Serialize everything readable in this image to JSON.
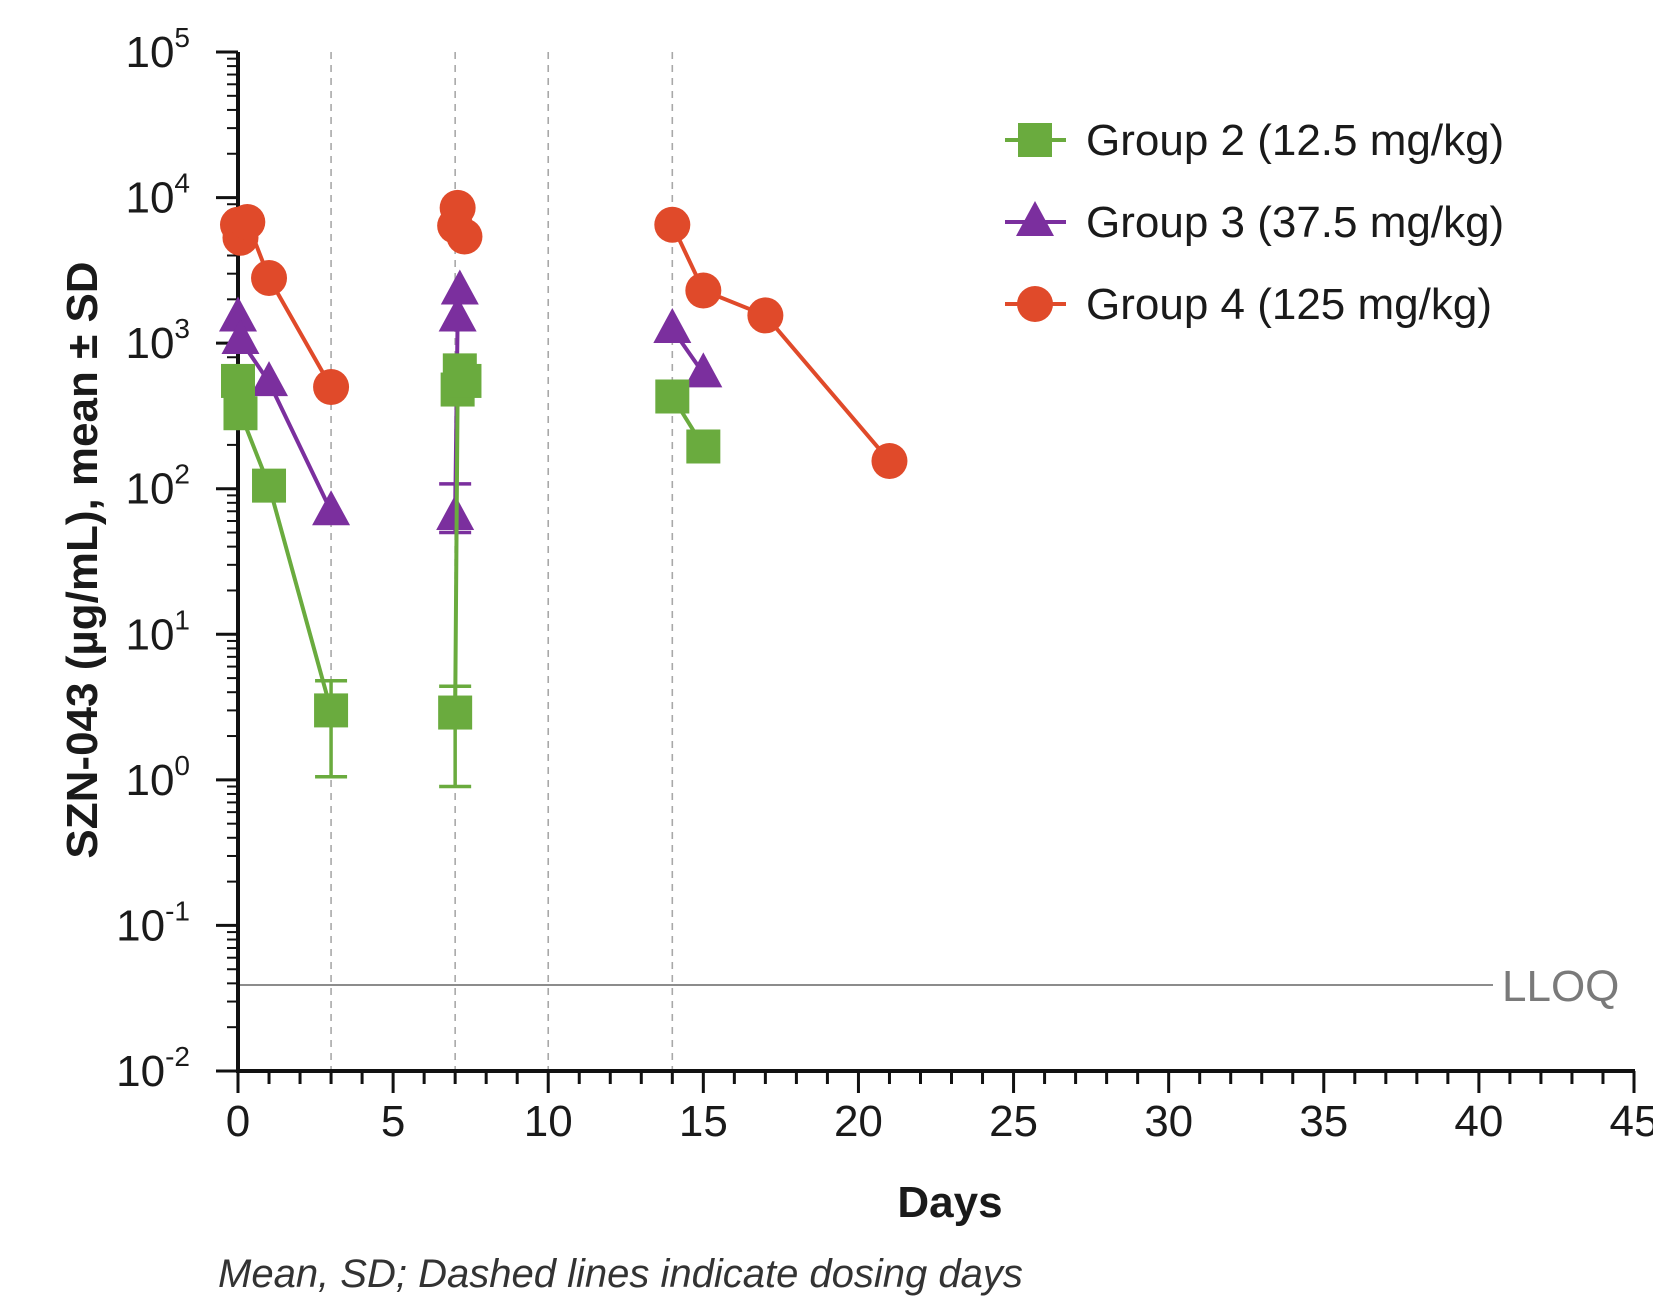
{
  "chart_data": {
    "type": "line",
    "title": "",
    "xlabel": "Days",
    "ylabel": "SZN-043 (µg/mL), mean ± SD",
    "y_scale": "log",
    "xlim": [
      0,
      45
    ],
    "ylim": [
      0.01,
      100000
    ],
    "x_ticks": [
      "0",
      "5",
      "10",
      "15",
      "20",
      "25",
      "30",
      "35",
      "40",
      "45"
    ],
    "y_ticks": [
      {
        "base": "10",
        "exp": "5",
        "value": 100000
      },
      {
        "base": "10",
        "exp": "4",
        "value": 10000
      },
      {
        "base": "10",
        "exp": "3",
        "value": 1000
      },
      {
        "base": "10",
        "exp": "2",
        "value": 100
      },
      {
        "base": "10",
        "exp": "1",
        "value": 10
      },
      {
        "base": "10",
        "exp": "0",
        "value": 1
      },
      {
        "base": "10",
        "exp": "-1",
        "value": 0.1
      },
      {
        "base": "10",
        "exp": "-2",
        "value": 0.01
      }
    ],
    "dosing_days": [
      3,
      7,
      10,
      14
    ],
    "lloq": {
      "label": "LLOQ",
      "value": 0.039
    },
    "legend_position": "top-right",
    "series": [
      {
        "name": "Group 2 (12.5 mg/kg)",
        "color": "#6aab3e",
        "marker": "square",
        "segments": [
          [
            {
              "x": 0,
              "y": 550
            },
            {
              "x": 0.08,
              "y": 330
            },
            {
              "x": 1,
              "y": 105
            },
            {
              "x": 3,
              "y": 3.0,
              "sd_low": 1.05,
              "sd_high": 4.8
            }
          ],
          [
            {
              "x": 7,
              "y": 2.9,
              "sd_low": 0.9,
              "sd_high": 4.4
            },
            {
              "x": 7.08,
              "y": 480
            },
            {
              "x": 7.3,
              "y": 550
            },
            {
              "x": 7.15,
              "y": 650
            }
          ],
          [
            {
              "x": 14,
              "y": 430
            },
            {
              "x": 15,
              "y": 195
            }
          ]
        ]
      },
      {
        "name": "Group 3 (37.5 mg/kg)",
        "color": "#7b2f9e",
        "marker": "triangle",
        "segments": [
          [
            {
              "x": 0,
              "y": 1500
            },
            {
              "x": 0.08,
              "y": 1050
            },
            {
              "x": 1,
              "y": 540
            },
            {
              "x": 3,
              "y": 70
            }
          ],
          [
            {
              "x": 7,
              "y": 65,
              "sd_low": 50,
              "sd_high": 108
            },
            {
              "x": 7.08,
              "y": 1500
            },
            {
              "x": 7.15,
              "y": 2300
            }
          ],
          [
            {
              "x": 14,
              "y": 1250
            },
            {
              "x": 15,
              "y": 620
            }
          ]
        ]
      },
      {
        "name": "Group 4 (125 mg/kg)",
        "color": "#e04a2a",
        "marker": "circle",
        "segments": [
          [
            {
              "x": 0,
              "y": 6500
            },
            {
              "x": 0.08,
              "y": 5300
            },
            {
              "x": 0.3,
              "y": 6800
            },
            {
              "x": 1,
              "y": 2800
            },
            {
              "x": 3,
              "y": 500
            }
          ],
          [
            {
              "x": 7,
              "y": 6400
            },
            {
              "x": 7.08,
              "y": 8500
            },
            {
              "x": 7.3,
              "y": 5400
            }
          ],
          [
            {
              "x": 14,
              "y": 6500
            },
            {
              "x": 15,
              "y": 2300
            },
            {
              "x": 17,
              "y": 1550
            },
            {
              "x": 21,
              "y": 155
            }
          ]
        ]
      }
    ]
  },
  "footnote": "Mean, SD; Dashed lines indicate dosing days"
}
